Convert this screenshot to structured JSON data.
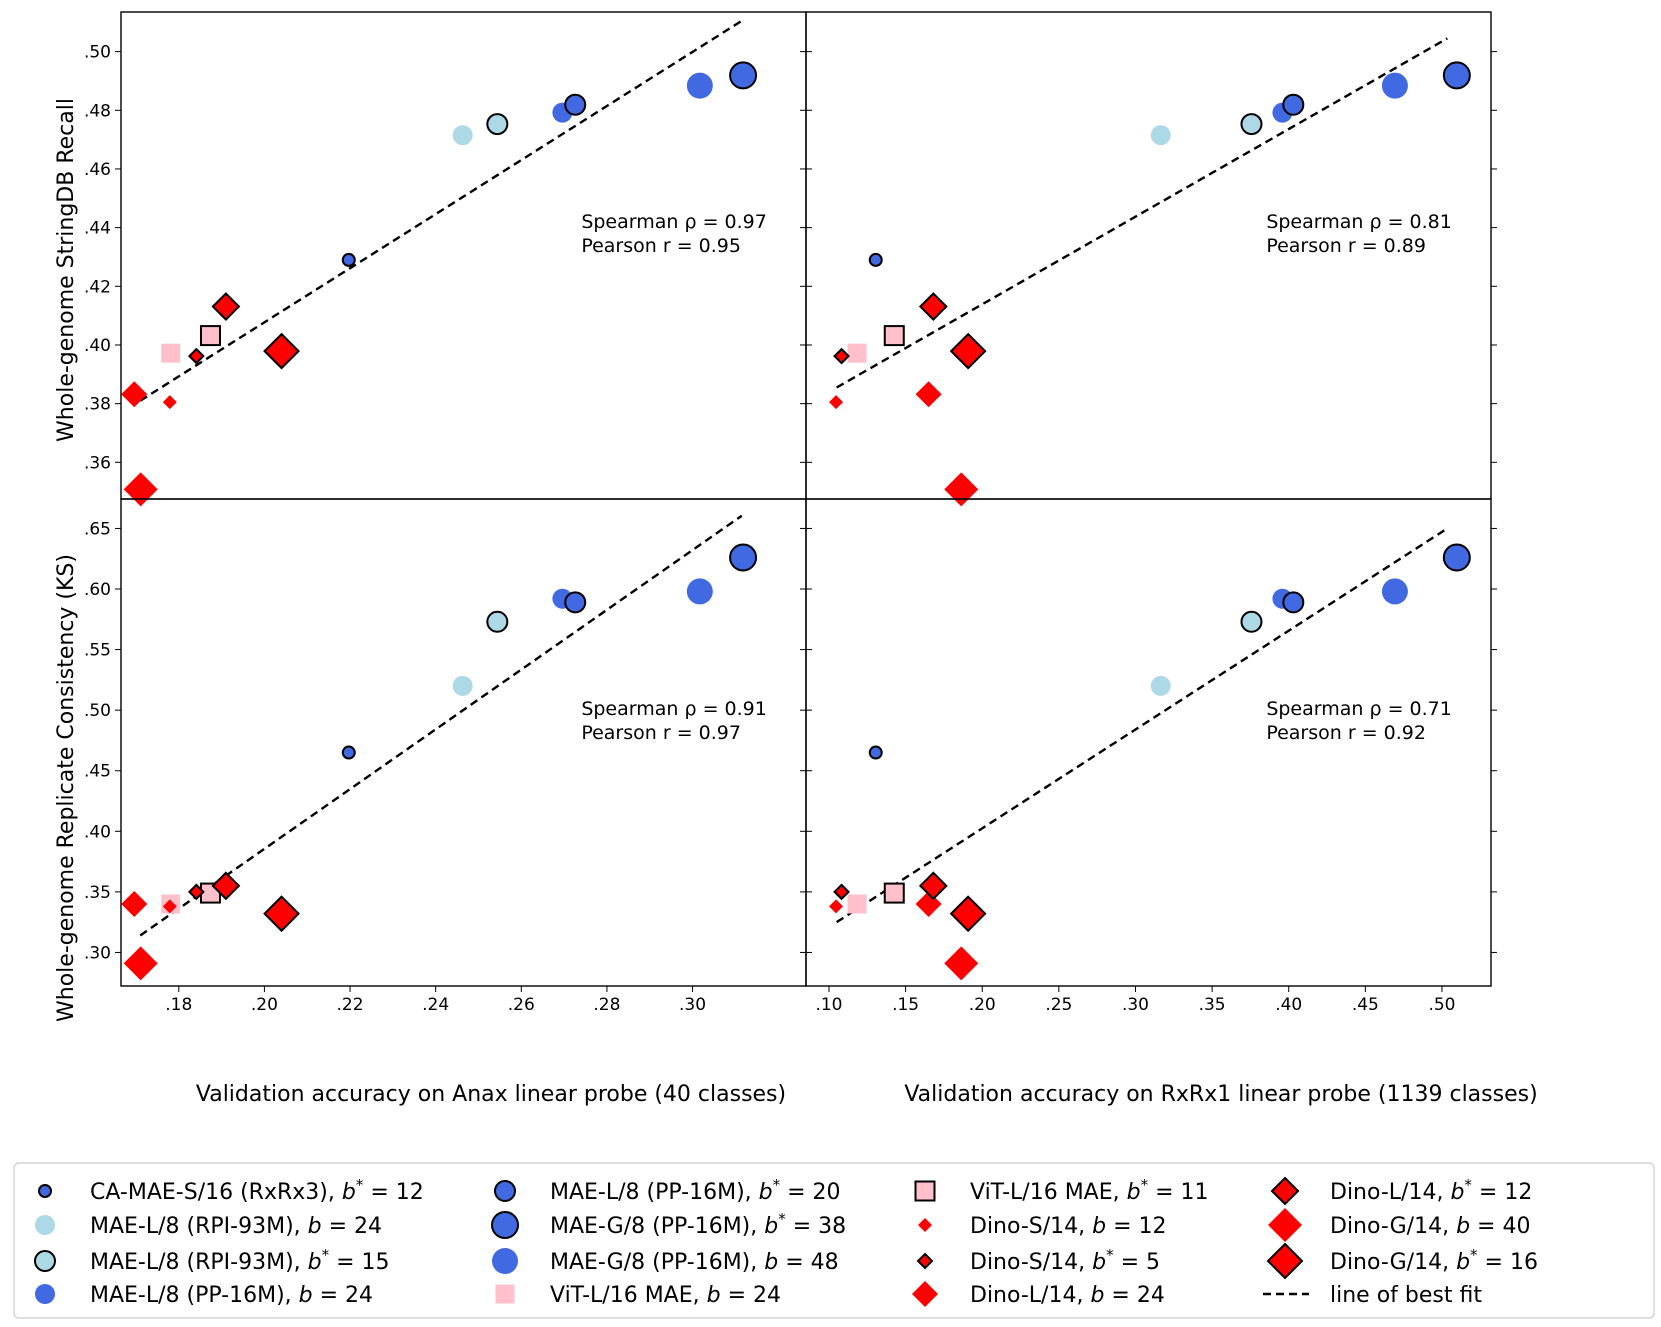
{
  "figure": {
    "ylabel_top": "Whole-genome StringDB Recall",
    "ylabel_bottom": "Whole-genome Replicate Consistency (KS)",
    "xlabel_left": "Validation accuracy on Anax linear probe (40 classes)",
    "xlabel_right": "Validation accuracy on RxRx1 linear probe (1139 classes)"
  },
  "series_styles": [
    {
      "key": "ca_mae_s16",
      "color": "#4169e1",
      "marker": "circle",
      "size": "small",
      "outline": true
    },
    {
      "key": "mae_l8_rpi_b24",
      "color": "#add8e6",
      "marker": "circle",
      "size": "medium",
      "outline": false
    },
    {
      "key": "mae_l8_rpi_b15",
      "color": "#add8e6",
      "marker": "circle",
      "size": "medium",
      "outline": true
    },
    {
      "key": "mae_l8_pp_b24",
      "color": "#4169e1",
      "marker": "circle",
      "size": "medium",
      "outline": false
    },
    {
      "key": "mae_l8_pp_b20",
      "color": "#4169e1",
      "marker": "circle",
      "size": "medium",
      "outline": true
    },
    {
      "key": "mae_g8_pp_b38",
      "color": "#4169e1",
      "marker": "circle",
      "size": "large",
      "outline": true
    },
    {
      "key": "mae_g8_pp_b48",
      "color": "#4169e1",
      "marker": "circle",
      "size": "large",
      "outline": false
    },
    {
      "key": "vit_l16_b24",
      "color": "#ffc0cb",
      "marker": "square",
      "size": "medium",
      "outline": false
    },
    {
      "key": "vit_l16_b11",
      "color": "#ffc0cb",
      "marker": "square",
      "size": "medium",
      "outline": true
    },
    {
      "key": "dino_s14_b12",
      "color": "#ff0000",
      "marker": "diamond",
      "size": "small",
      "outline": false
    },
    {
      "key": "dino_s14_b5",
      "color": "#ff0000",
      "marker": "diamond",
      "size": "small",
      "outline": true
    },
    {
      "key": "dino_l14_b24",
      "color": "#ff0000",
      "marker": "diamond",
      "size": "medium",
      "outline": false
    },
    {
      "key": "dino_l14_b12",
      "color": "#ff0000",
      "marker": "diamond",
      "size": "medium",
      "outline": true
    },
    {
      "key": "dino_g14_b40",
      "color": "#ff0000",
      "marker": "diamond",
      "size": "large",
      "outline": false
    },
    {
      "key": "dino_g14_b16",
      "color": "#ff0000",
      "marker": "diamond",
      "size": "large",
      "outline": true
    }
  ],
  "chart_data": [
    {
      "type": "scatter",
      "panel": "top-left",
      "xlim": [
        0.1665,
        0.3265
      ],
      "ylim": [
        0.3475,
        0.5135
      ],
      "xticks": [
        0.18,
        0.2,
        0.22,
        0.24,
        0.26,
        0.28,
        0.3
      ],
      "yticks": [
        0.36,
        0.38,
        0.4,
        0.42,
        0.44,
        0.46,
        0.48,
        0.5
      ],
      "stats": [
        "Spearman ρ = 0.97",
        "Pearson r = 0.95"
      ],
      "fit": {
        "x": [
          0.171,
          0.3115
        ],
        "y": [
          0.381,
          0.5105
        ]
      },
      "points": [
        {
          "series": "ca_mae_s16",
          "x": 0.2197,
          "y": 0.429
        },
        {
          "series": "mae_l8_rpi_b24",
          "x": 0.2463,
          "y": 0.4715
        },
        {
          "series": "mae_l8_rpi_b15",
          "x": 0.2544,
          "y": 0.4753
        },
        {
          "series": "mae_l8_pp_b24",
          "x": 0.2696,
          "y": 0.4792
        },
        {
          "series": "mae_l8_pp_b20",
          "x": 0.2726,
          "y": 0.4819
        },
        {
          "series": "mae_g8_pp_b38",
          "x": 0.3118,
          "y": 0.4919
        },
        {
          "series": "mae_g8_pp_b48",
          "x": 0.3017,
          "y": 0.4884
        },
        {
          "series": "vit_l16_b24",
          "x": 0.1781,
          "y": 0.3972
        },
        {
          "series": "vit_l16_b11",
          "x": 0.1874,
          "y": 0.4032
        },
        {
          "series": "dino_s14_b12",
          "x": 0.1779,
          "y": 0.3805
        },
        {
          "series": "dino_s14_b5",
          "x": 0.1841,
          "y": 0.3962
        },
        {
          "series": "dino_l14_b24",
          "x": 0.1696,
          "y": 0.3832
        },
        {
          "series": "dino_l14_b12",
          "x": 0.191,
          "y": 0.4131
        },
        {
          "series": "dino_g14_b40",
          "x": 0.1711,
          "y": 0.3508
        },
        {
          "series": "dino_g14_b16",
          "x": 0.204,
          "y": 0.3979
        }
      ]
    },
    {
      "type": "scatter",
      "panel": "top-right",
      "xlim": [
        0.085,
        0.532
      ],
      "ylim": [
        0.3475,
        0.5135
      ],
      "xticks": [
        0.1,
        0.15,
        0.2,
        0.25,
        0.3,
        0.35,
        0.4,
        0.45,
        0.5
      ],
      "yticks": [
        0.36,
        0.38,
        0.4,
        0.42,
        0.44,
        0.46,
        0.48,
        0.5
      ],
      "stats": [
        "Spearman ρ = 0.81",
        "Pearson r = 0.89"
      ],
      "fit": {
        "x": [
          0.105,
          0.5035
        ],
        "y": [
          0.3855,
          0.5045
        ]
      },
      "points": [
        {
          "series": "ca_mae_s16",
          "x": 0.1305,
          "y": 0.429
        },
        {
          "series": "mae_l8_rpi_b24",
          "x": 0.3165,
          "y": 0.4715
        },
        {
          "series": "mae_l8_rpi_b15",
          "x": 0.3757,
          "y": 0.4753
        },
        {
          "series": "mae_l8_pp_b24",
          "x": 0.3959,
          "y": 0.4792
        },
        {
          "series": "mae_l8_pp_b20",
          "x": 0.403,
          "y": 0.4819
        },
        {
          "series": "mae_g8_pp_b38",
          "x": 0.5097,
          "y": 0.4919
        },
        {
          "series": "mae_g8_pp_b48",
          "x": 0.4693,
          "y": 0.4884
        },
        {
          "series": "vit_l16_b24",
          "x": 0.1183,
          "y": 0.3972
        },
        {
          "series": "vit_l16_b11",
          "x": 0.1426,
          "y": 0.4032
        },
        {
          "series": "dino_s14_b12",
          "x": 0.1046,
          "y": 0.3805
        },
        {
          "series": "dino_s14_b5",
          "x": 0.1082,
          "y": 0.3962
        },
        {
          "series": "dino_l14_b24",
          "x": 0.165,
          "y": 0.3832
        },
        {
          "series": "dino_l14_b12",
          "x": 0.1681,
          "y": 0.4131
        },
        {
          "series": "dino_g14_b40",
          "x": 0.1863,
          "y": 0.3508
        },
        {
          "series": "dino_g14_b16",
          "x": 0.1908,
          "y": 0.3979
        }
      ]
    },
    {
      "type": "scatter",
      "panel": "bottom-left",
      "xlim": [
        0.1665,
        0.3265
      ],
      "ylim": [
        0.2723,
        0.6743
      ],
      "xticks": [
        0.18,
        0.2,
        0.22,
        0.24,
        0.26,
        0.28,
        0.3
      ],
      "yticks": [
        0.3,
        0.35,
        0.4,
        0.45,
        0.5,
        0.55,
        0.6,
        0.65
      ],
      "ytick_labels": [
        ".30",
        ".35",
        ".40",
        ".45",
        ".50",
        ".55",
        ".60",
        ".65"
      ],
      "stats": [
        "Spearman ρ = 0.91",
        "Pearson r = 0.97"
      ],
      "fit": {
        "x": [
          0.171,
          0.3115
        ],
        "y": [
          0.314,
          0.6605
        ]
      },
      "points": [
        {
          "series": "ca_mae_s16",
          "x": 0.2197,
          "y": 0.465
        },
        {
          "series": "mae_l8_rpi_b24",
          "x": 0.2463,
          "y": 0.52
        },
        {
          "series": "mae_l8_rpi_b15",
          "x": 0.2544,
          "y": 0.573
        },
        {
          "series": "mae_l8_pp_b24",
          "x": 0.2696,
          "y": 0.592
        },
        {
          "series": "mae_l8_pp_b20",
          "x": 0.2726,
          "y": 0.589
        },
        {
          "series": "mae_g8_pp_b38",
          "x": 0.3118,
          "y": 0.626
        },
        {
          "series": "mae_g8_pp_b48",
          "x": 0.3017,
          "y": 0.598
        },
        {
          "series": "vit_l16_b24",
          "x": 0.1781,
          "y": 0.34
        },
        {
          "series": "vit_l16_b11",
          "x": 0.1874,
          "y": 0.349
        },
        {
          "series": "dino_s14_b12",
          "x": 0.1779,
          "y": 0.338
        },
        {
          "series": "dino_s14_b5",
          "x": 0.1841,
          "y": 0.35
        },
        {
          "series": "dino_l14_b24",
          "x": 0.1696,
          "y": 0.34
        },
        {
          "series": "dino_l14_b12",
          "x": 0.191,
          "y": 0.355
        },
        {
          "series": "dino_g14_b40",
          "x": 0.1711,
          "y": 0.291
        },
        {
          "series": "dino_g14_b16",
          "x": 0.204,
          "y": 0.332
        }
      ]
    },
    {
      "type": "scatter",
      "panel": "bottom-right",
      "xlim": [
        0.085,
        0.532
      ],
      "ylim": [
        0.2723,
        0.6743
      ],
      "xticks": [
        0.1,
        0.15,
        0.2,
        0.25,
        0.3,
        0.35,
        0.4,
        0.45,
        0.5
      ],
      "yticks": [
        0.3,
        0.35,
        0.4,
        0.45,
        0.5,
        0.55,
        0.6,
        0.65
      ],
      "stats": [
        "Spearman ρ = 0.71",
        "Pearson r = 0.92"
      ],
      "fit": {
        "x": [
          0.105,
          0.5035
        ],
        "y": [
          0.325,
          0.65
        ]
      },
      "points": [
        {
          "series": "ca_mae_s16",
          "x": 0.1305,
          "y": 0.465
        },
        {
          "series": "mae_l8_rpi_b24",
          "x": 0.3165,
          "y": 0.52
        },
        {
          "series": "mae_l8_rpi_b15",
          "x": 0.3757,
          "y": 0.573
        },
        {
          "series": "mae_l8_pp_b24",
          "x": 0.3959,
          "y": 0.592
        },
        {
          "series": "mae_l8_pp_b20",
          "x": 0.403,
          "y": 0.589
        },
        {
          "series": "mae_g8_pp_b38",
          "x": 0.5097,
          "y": 0.626
        },
        {
          "series": "mae_g8_pp_b48",
          "x": 0.4693,
          "y": 0.598
        },
        {
          "series": "vit_l16_b24",
          "x": 0.1183,
          "y": 0.34
        },
        {
          "series": "vit_l16_b11",
          "x": 0.1426,
          "y": 0.349
        },
        {
          "series": "dino_s14_b12",
          "x": 0.1046,
          "y": 0.338
        },
        {
          "series": "dino_s14_b5",
          "x": 0.1082,
          "y": 0.35
        },
        {
          "series": "dino_l14_b24",
          "x": 0.165,
          "y": 0.34
        },
        {
          "series": "dino_l14_b12",
          "x": 0.1681,
          "y": 0.355
        },
        {
          "series": "dino_g14_b40",
          "x": 0.1863,
          "y": 0.291
        },
        {
          "series": "dino_g14_b16",
          "x": 0.1908,
          "y": 0.332
        }
      ]
    }
  ],
  "legend": [
    {
      "series": "ca_mae_s16",
      "name": "CA-MAE-S/16 (RxRx3), ",
      "bvar": "b",
      "star": true,
      "op": " = ",
      "val": "12"
    },
    {
      "series": "mae_l8_rpi_b24",
      "name": "MAE-L/8 (RPI-93M), ",
      "bvar": "b",
      "star": false,
      "op": " = ",
      "val": "24"
    },
    {
      "series": "mae_l8_rpi_b15",
      "name": "MAE-L/8 (RPI-93M), ",
      "bvar": "b",
      "star": true,
      "op": " = ",
      "val": "15"
    },
    {
      "series": "mae_l8_pp_b24",
      "name": "MAE-L/8 (PP-16M), ",
      "bvar": "b",
      "star": false,
      "op": " = ",
      "val": "24"
    },
    {
      "series": "mae_l8_pp_b20",
      "name": "MAE-L/8 (PP-16M), ",
      "bvar": "b",
      "star": true,
      "op": " = ",
      "val": "20"
    },
    {
      "series": "mae_g8_pp_b38",
      "name": "MAE-G/8 (PP-16M), ",
      "bvar": "b",
      "star": true,
      "op": " = ",
      "val": "38"
    },
    {
      "series": "mae_g8_pp_b48",
      "name": "MAE-G/8 (PP-16M), ",
      "bvar": "b",
      "star": false,
      "op": " = ",
      "val": "48"
    },
    {
      "series": "vit_l16_b24",
      "name": "ViT-L/16 MAE, ",
      "bvar": "b",
      "star": false,
      "op": " = ",
      "val": "24"
    },
    {
      "series": "vit_l16_b11",
      "name": "ViT-L/16 MAE, ",
      "bvar": "b",
      "star": true,
      "op": " = ",
      "val": "11"
    },
    {
      "series": "dino_s14_b12",
      "name": "Dino-S/14, ",
      "bvar": "b",
      "star": false,
      "op": " = ",
      "val": "12"
    },
    {
      "series": "dino_s14_b5",
      "name": "Dino-S/14, ",
      "bvar": "b",
      "star": true,
      "op": " = ",
      "val": "5"
    },
    {
      "series": "dino_l14_b24",
      "name": "Dino-L/14, ",
      "bvar": "b",
      "star": false,
      "op": " = ",
      "val": "24"
    },
    {
      "series": "dino_l14_b12",
      "name": "Dino-L/14, ",
      "bvar": "b",
      "star": true,
      "op": " = ",
      "val": "12"
    },
    {
      "series": "dino_g14_b40",
      "name": "Dino-G/14, ",
      "bvar": "b",
      "star": false,
      "op": " = ",
      "val": "40"
    },
    {
      "series": "dino_g14_b16",
      "name": "Dino-G/14, ",
      "bvar": "b",
      "star": true,
      "op": " = ",
      "val": "16"
    },
    {
      "series": "fit",
      "name": "line of best fit",
      "line": true
    }
  ]
}
